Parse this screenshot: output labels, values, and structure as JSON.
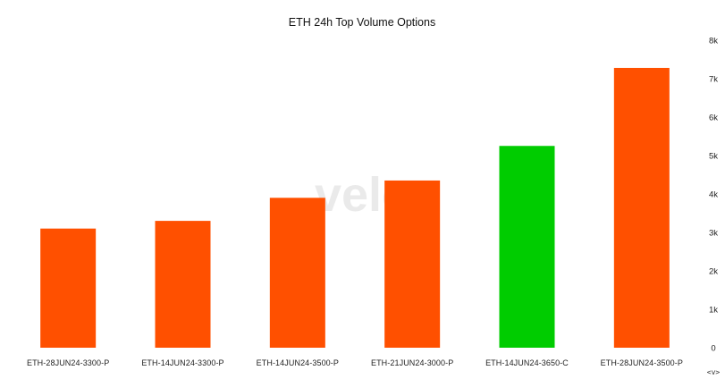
{
  "chart_data": {
    "type": "bar",
    "title": "ETH 24h Top Volume Options",
    "categories": [
      "ETH-28JUN24-3300-P",
      "ETH-14JUN24-3300-P",
      "ETH-14JUN24-3500-P",
      "ETH-21JUN24-3000-P",
      "ETH-14JUN24-3650-C",
      "ETH-28JUN24-3500-P"
    ],
    "values": [
      3100,
      3300,
      3900,
      4350,
      5250,
      7280
    ],
    "bar_colors": [
      "#ff5000",
      "#ff5000",
      "#ff5000",
      "#ff5000",
      "#00cc00",
      "#ff5000"
    ],
    "xlabel": "",
    "ylabel": "",
    "ylim": [
      0,
      8000
    ],
    "y_ticks": [
      0,
      1000,
      2000,
      3000,
      4000,
      5000,
      6000,
      7000,
      8000
    ],
    "y_tick_labels": [
      "0",
      "1k",
      "2k",
      "3k",
      "4k",
      "5k",
      "6k",
      "7k",
      "8k"
    ],
    "y_axis_position": "right",
    "grid": false,
    "legend": "none"
  },
  "watermark": {
    "text": "velo"
  },
  "axis_control": {
    "text": "<v>"
  },
  "colors": {
    "put": "#ff5000",
    "call": "#00cc00",
    "background": "#ffffff"
  }
}
